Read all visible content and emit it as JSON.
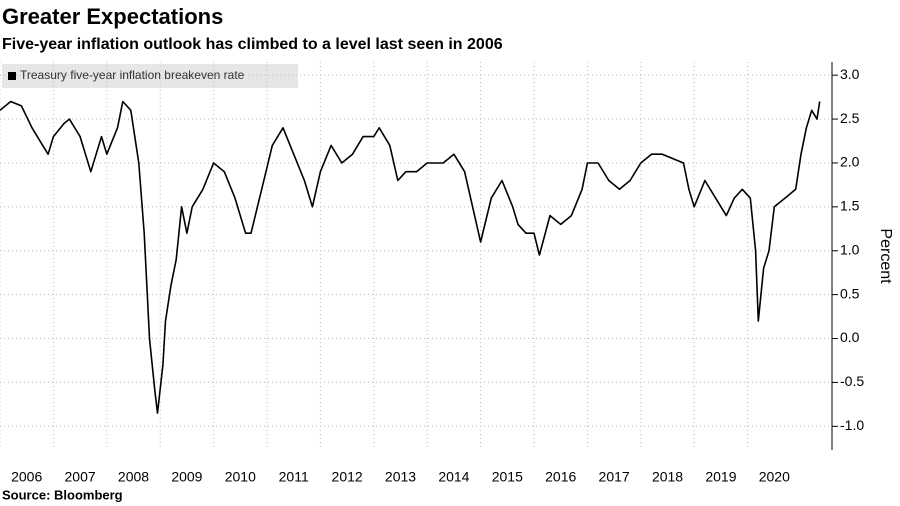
{
  "chart_data": {
    "type": "line",
    "title": "Greater Expectations",
    "subtitle": "Five-year inflation outlook has climbed to a level last seen in 2006",
    "source": "Source: Bloomberg",
    "y_label": "Percent",
    "x": [
      2006.0,
      2006.2,
      2006.4,
      2006.6,
      2006.8,
      2006.9,
      2007.0,
      2007.2,
      2007.3,
      2007.5,
      2007.7,
      2007.9,
      2008.0,
      2008.2,
      2008.3,
      2008.45,
      2008.6,
      2008.7,
      2008.8,
      2008.9,
      2008.95,
      2009.05,
      2009.1,
      2009.2,
      2009.3,
      2009.4,
      2009.5,
      2009.6,
      2009.8,
      2010.0,
      2010.2,
      2010.4,
      2010.6,
      2010.7,
      2010.9,
      2011.1,
      2011.3,
      2011.5,
      2011.7,
      2011.85,
      2012.0,
      2012.2,
      2012.4,
      2012.6,
      2012.8,
      2013.0,
      2013.1,
      2013.3,
      2013.45,
      2013.6,
      2013.8,
      2014.0,
      2014.3,
      2014.5,
      2014.7,
      2014.85,
      2015.0,
      2015.2,
      2015.4,
      2015.6,
      2015.7,
      2015.85,
      2016.0,
      2016.1,
      2016.3,
      2016.5,
      2016.7,
      2016.9,
      2017.0,
      2017.2,
      2017.4,
      2017.6,
      2017.8,
      2018.0,
      2018.2,
      2018.4,
      2018.6,
      2018.8,
      2018.9,
      2019.0,
      2019.2,
      2019.4,
      2019.6,
      2019.75,
      2019.9,
      2020.05,
      2020.15,
      2020.2,
      2020.3,
      2020.4,
      2020.5,
      2020.7,
      2020.9,
      2021.0,
      2021.1,
      2021.2,
      2021.3,
      2021.35
    ],
    "series": [
      {
        "name": "Treasury five-year inflation breakeven rate",
        "color": "#000000",
        "values": [
          2.6,
          2.7,
          2.65,
          2.4,
          2.2,
          2.1,
          2.3,
          2.45,
          2.5,
          2.3,
          1.9,
          2.3,
          2.1,
          2.4,
          2.7,
          2.6,
          2.0,
          1.2,
          0.0,
          -0.6,
          -0.85,
          -0.3,
          0.2,
          0.6,
          0.9,
          1.5,
          1.2,
          1.5,
          1.7,
          2.0,
          1.9,
          1.6,
          1.2,
          1.2,
          1.7,
          2.2,
          2.4,
          2.1,
          1.8,
          1.5,
          1.9,
          2.2,
          2.0,
          2.1,
          2.3,
          2.3,
          2.4,
          2.2,
          1.8,
          1.9,
          1.9,
          2.0,
          2.0,
          2.1,
          1.9,
          1.5,
          1.1,
          1.6,
          1.8,
          1.5,
          1.3,
          1.2,
          1.2,
          0.95,
          1.4,
          1.3,
          1.4,
          1.7,
          2.0,
          2.0,
          1.8,
          1.7,
          1.8,
          2.0,
          2.1,
          2.1,
          2.05,
          2.0,
          1.7,
          1.5,
          1.8,
          1.6,
          1.4,
          1.6,
          1.7,
          1.6,
          1.0,
          0.2,
          0.8,
          1.0,
          1.5,
          1.6,
          1.7,
          2.1,
          2.4,
          2.6,
          2.5,
          2.7
        ]
      }
    ],
    "xlim": [
      2006,
      2021.58
    ],
    "xticks": [
      2006,
      2007,
      2008,
      2009,
      2010,
      2011,
      2012,
      2013,
      2014,
      2015,
      2016,
      2017,
      2018,
      2019,
      2020
    ],
    "ylim": [
      -1.27,
      3.15
    ],
    "yticks": [
      {
        "value": -1,
        "label": "-1.0"
      },
      -0.5,
      {
        "value": 0,
        "label": "0.0"
      },
      0.5,
      {
        "value": 1,
        "label": "1.0"
      },
      1.5,
      {
        "value": 2,
        "label": "2.0"
      },
      2.5,
      {
        "value": 3,
        "label": "3.0"
      }
    ],
    "grid": true
  }
}
